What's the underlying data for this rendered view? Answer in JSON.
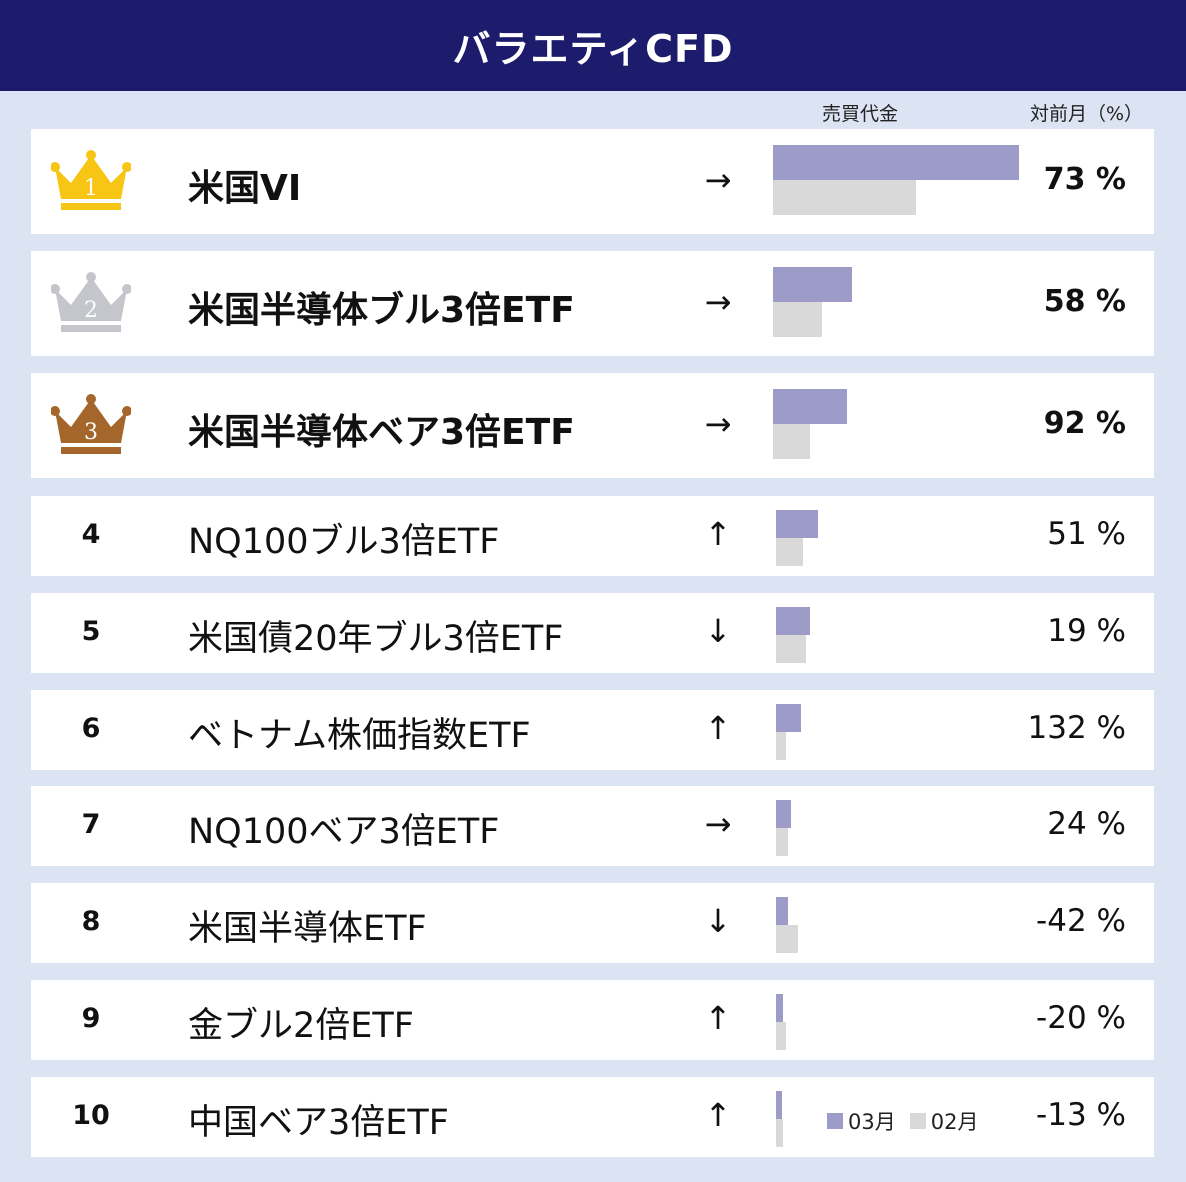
{
  "header": {
    "title": "バラエティCFD"
  },
  "columns": {
    "volume": "売買代金",
    "mom": "対前月（%）"
  },
  "legend": {
    "mar": "03月",
    "feb": "02月"
  },
  "colors": {
    "header_bg": "#1c1b6c",
    "page_bg": "#dce4f4",
    "mar": "#9d9cc9",
    "feb": "#d9d9d9",
    "gold": "#f7c614",
    "silver": "#c4c6cb",
    "bronze": "#a4662a"
  },
  "chart_data": {
    "type": "bar",
    "title": "バラエティCFD",
    "series": [
      {
        "name": "03月",
        "values": [
          100,
          32,
          30,
          17,
          14,
          10,
          6,
          5,
          3,
          2
        ]
      },
      {
        "name": "02月",
        "values": [
          58,
          20,
          15,
          11,
          12,
          4,
          5,
          9,
          4,
          3
        ]
      }
    ],
    "rows": [
      {
        "rank": "1",
        "name": "米国VI",
        "arrow": "→",
        "pct": "73 %",
        "top": true,
        "crown": "gold"
      },
      {
        "rank": "2",
        "name": "米国半導体ブル3倍ETF",
        "arrow": "→",
        "pct": "58 %",
        "top": true,
        "crown": "silver"
      },
      {
        "rank": "3",
        "name": "米国半導体ベア3倍ETF",
        "arrow": "→",
        "pct": "92 %",
        "top": true,
        "crown": "bronze"
      },
      {
        "rank": "4",
        "name": "NQ100ブル3倍ETF",
        "arrow": "↑",
        "pct": "51 %"
      },
      {
        "rank": "5",
        "name": "米国債20年ブル3倍ETF",
        "arrow": "↓",
        "pct": "19 %"
      },
      {
        "rank": "6",
        "name": "ベトナム株価指数ETF",
        "arrow": "↑",
        "pct": "132 %"
      },
      {
        "rank": "7",
        "name": "NQ100ベア3倍ETF",
        "arrow": "→",
        "pct": "24 %"
      },
      {
        "rank": "8",
        "name": "米国半導体ETF",
        "arrow": "↓",
        "pct": "-42 %"
      },
      {
        "rank": "9",
        "name": "金ブル2倍ETF",
        "arrow": "↑",
        "pct": "-20 %"
      },
      {
        "rank": "10",
        "name": "中国ベア3倍ETF",
        "arrow": "↑",
        "pct": "-13 %"
      }
    ],
    "xlim": [
      0,
      100
    ]
  }
}
